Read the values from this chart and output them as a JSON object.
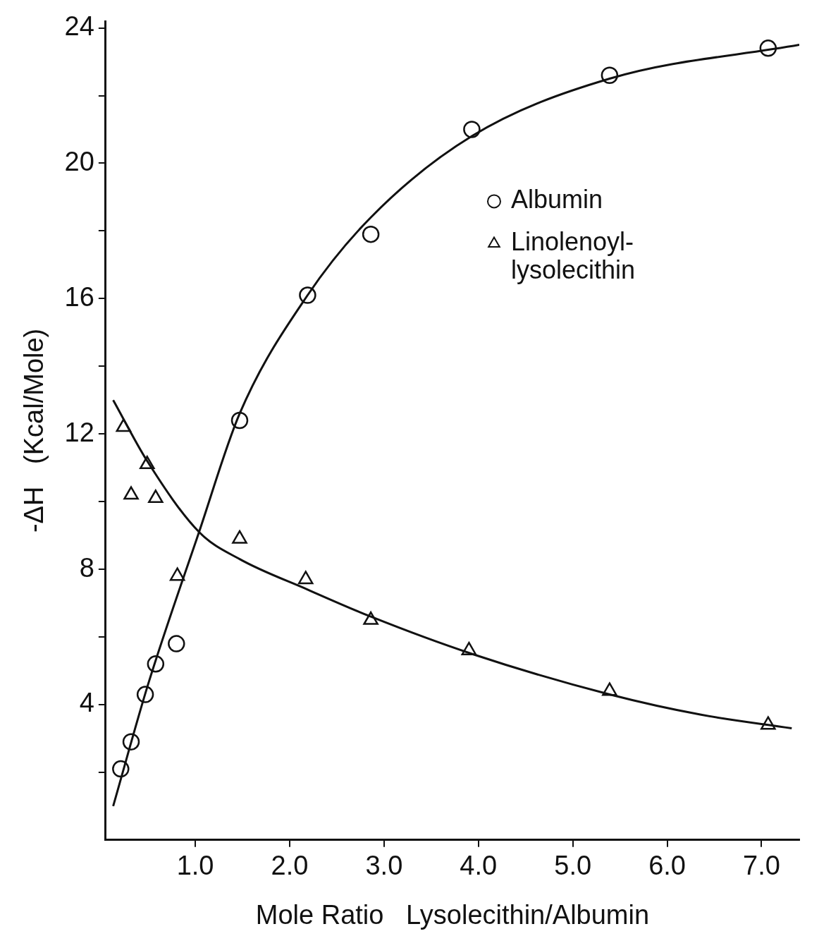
{
  "chart_data": {
    "type": "scatter",
    "xlabel": "Mole Ratio   Lysolecithin/Albumin",
    "ylabel": "-ΔH   (Kcal/Mole)",
    "xlim": [
      0.05,
      7.4
    ],
    "xticks": [
      {
        "value": 1,
        "label": "1.0"
      },
      {
        "value": 2,
        "label": "2.0"
      },
      {
        "value": 3,
        "label": "3.0"
      },
      {
        "value": 4,
        "label": "4.0"
      },
      {
        "value": 5,
        "label": "5.0"
      },
      {
        "value": 6,
        "label": "6.0"
      },
      {
        "value": 7,
        "label": "7.0"
      }
    ],
    "ylim": [
      0,
      24.2
    ],
    "yticks": [
      {
        "value": 2,
        "label": null
      },
      4,
      {
        "value": 6,
        "label": null
      },
      8,
      {
        "value": 10,
        "label": null
      },
      12,
      {
        "value": 14,
        "label": null
      },
      16,
      {
        "value": 18,
        "label": null
      },
      20,
      {
        "value": 22,
        "label": null
      },
      24
    ],
    "grid": false,
    "legend": "top right",
    "series": [
      {
        "name": "Albumin",
        "type": "scatter",
        "marker": "circle",
        "color": "#111111",
        "x": [
          0.21,
          0.32,
          0.47,
          0.58,
          0.8,
          1.47,
          2.19,
          2.86,
          3.93,
          5.39,
          7.07
        ],
        "values": [
          2.1,
          2.9,
          4.3,
          5.2,
          5.8,
          12.4,
          16.1,
          17.9,
          21.0,
          22.6,
          23.4
        ]
      },
      {
        "name": "Linolenoyl-lysolecithin",
        "type": "scatter",
        "marker": "triangle",
        "color": "#111111",
        "x": [
          0.24,
          0.32,
          0.49,
          0.58,
          0.81,
          1.47,
          2.17,
          2.86,
          3.9,
          5.39,
          7.07
        ],
        "values": [
          12.2,
          10.2,
          11.1,
          10.1,
          7.8,
          8.9,
          7.7,
          6.5,
          5.6,
          4.4,
          3.4
        ]
      },
      {
        "type": "line",
        "marker": "none",
        "line_style": "solid",
        "color": "#111111",
        "x": [
          0.13,
          0.5,
          1.04,
          1.47,
          2.19,
          2.86,
          3.93,
          5.39,
          7.4
        ],
        "values": [
          1.0,
          4.6,
          9.1,
          12.6,
          16.1,
          18.4,
          20.8,
          22.5,
          23.5
        ]
      },
      {
        "type": "line",
        "marker": "none",
        "line_style": "solid",
        "color": "#111111",
        "x": [
          0.13,
          0.49,
          1.04,
          1.47,
          2.19,
          2.86,
          3.93,
          5.39,
          6.36,
          7.32
        ],
        "values": [
          13.0,
          11.2,
          9.1,
          8.3,
          7.4,
          6.6,
          5.5,
          4.3,
          3.7,
          3.3
        ]
      }
    ]
  }
}
